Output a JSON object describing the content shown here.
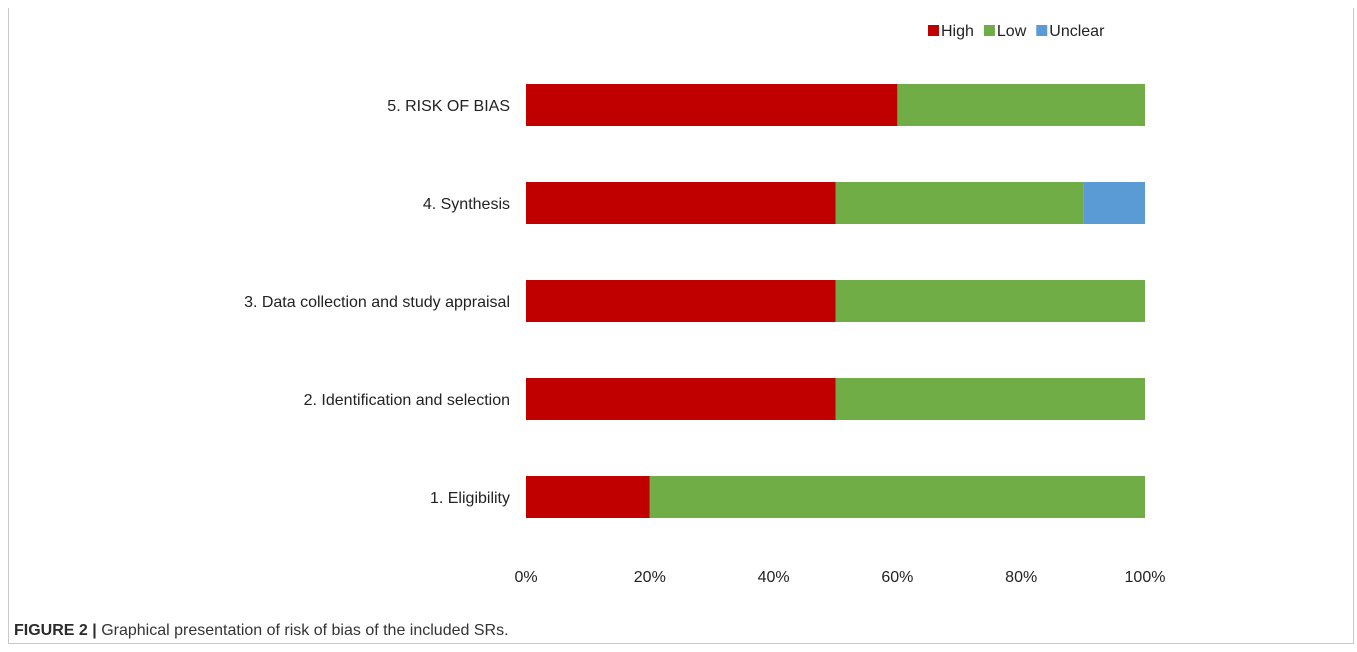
{
  "chart_data": {
    "type": "bar",
    "orientation": "horizontal",
    "stacked": true,
    "categories": [
      "5. RISK OF BIAS",
      "4. Synthesis",
      "3. Data collection and study appraisal",
      "2. Identification and selection",
      "1. Eligibility"
    ],
    "series": [
      {
        "name": "High",
        "color": "#c00000",
        "values": [
          60,
          50,
          50,
          50,
          20
        ]
      },
      {
        "name": "Low",
        "color": "#70ad47",
        "values": [
          40,
          40,
          50,
          50,
          80
        ]
      },
      {
        "name": "Unclear",
        "color": "#5b9bd5",
        "values": [
          0,
          10,
          0,
          0,
          0
        ]
      }
    ],
    "xticks": [
      "0%",
      "20%",
      "40%",
      "60%",
      "80%",
      "100%"
    ],
    "xlim": [
      0,
      100
    ],
    "legend_position": "top-right",
    "grid": false
  },
  "caption": {
    "label": "FIGURE 2",
    "separator": "|",
    "text": "Graphical presentation of risk of bias of the included SRs."
  }
}
